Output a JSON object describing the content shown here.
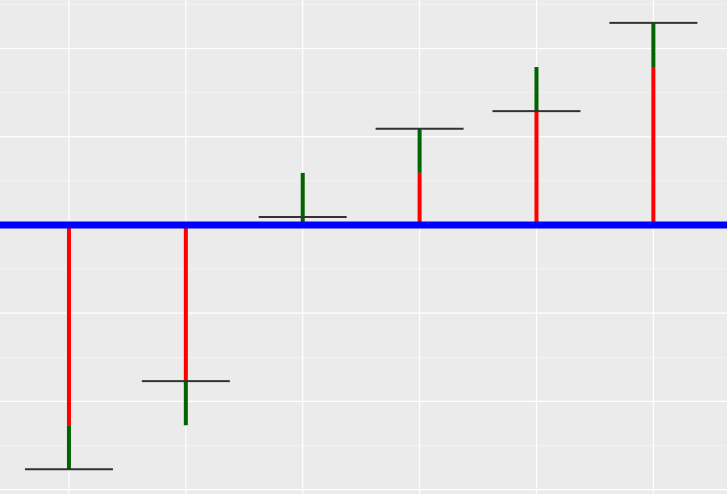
{
  "chart_data": {
    "type": "bar",
    "title": "",
    "xlabel": "",
    "ylabel": "",
    "grid": true,
    "x": [
      1,
      2,
      3,
      4,
      5,
      6
    ],
    "xlim": [
      0.41,
      6.63
    ],
    "ylim": [
      -3.05,
      2.55
    ],
    "baseline": 0,
    "bars": [
      {
        "x": 1,
        "value": -2.27,
        "extension_to": -2.77,
        "target": -2.77
      },
      {
        "x": 2,
        "value": -1.77,
        "extension_to": -2.27,
        "target": -1.77
      },
      {
        "x": 3,
        "value": 0,
        "extension_to": 0.59,
        "target": 0.09
      },
      {
        "x": 4,
        "value": 0.59,
        "extension_to": 1.09,
        "target": 1.09
      },
      {
        "x": 5,
        "value": 1.29,
        "extension_to": 1.79,
        "target": 1.29
      },
      {
        "x": 6,
        "value": 1.79,
        "extension_to": 2.29,
        "target": 2.29
      }
    ],
    "colors": {
      "background": "#ebebeb",
      "grid": "#ffffff",
      "baseline": "#0000ff",
      "bar": "#ff0000",
      "extension": "#006400",
      "target": "#333333"
    }
  }
}
